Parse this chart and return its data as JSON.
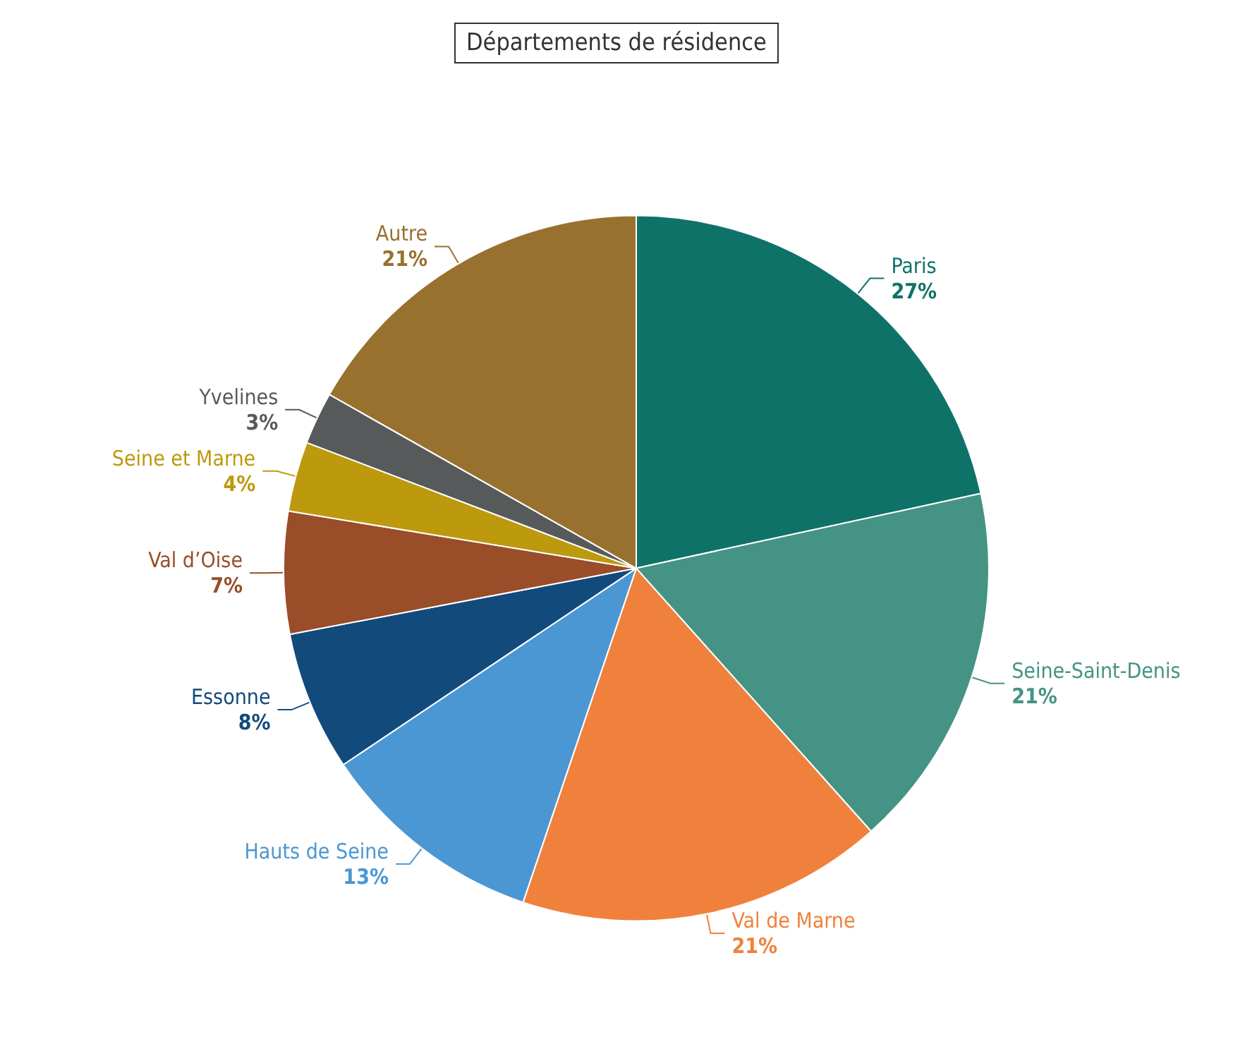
{
  "chart_data": {
    "type": "pie",
    "title": "Départements de résidence",
    "categories": [
      "Paris",
      "Seine-Saint-Denis",
      "Val de Marne",
      "Hauts de Seine",
      "Essonne",
      "Val d’Oise",
      "Seine et Marne",
      "Yvelines",
      "Autre"
    ],
    "values": [
      27,
      21,
      21,
      13,
      8,
      7,
      4,
      3,
      21
    ],
    "value_labels": [
      "27%",
      "21%",
      "21%",
      "13%",
      "8%",
      "7%",
      "4%",
      "3%",
      "21%"
    ],
    "colors": [
      "#0f7269",
      "#459384",
      "#f0813d",
      "#4b97d3",
      "#124a7c",
      "#994d29",
      "#bd990e",
      "#575a5b",
      "#98712f"
    ],
    "legend": false
  }
}
